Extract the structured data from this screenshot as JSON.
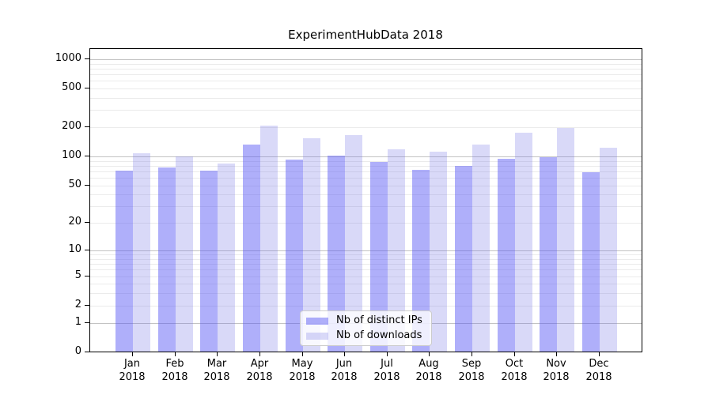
{
  "chart_data": {
    "type": "bar",
    "title": "ExperimentHubData 2018",
    "categories": [
      "Jan",
      "Feb",
      "Mar",
      "Apr",
      "May",
      "Jun",
      "Jul",
      "Aug",
      "Sep",
      "Oct",
      "Nov",
      "Dec"
    ],
    "xtick_second_line": "2018",
    "series": [
      {
        "name": "Nb of distinct IPs",
        "color": "#a9a9f5",
        "color_rgba": "rgba(85,85,245,0.47)",
        "values": [
          70,
          76,
          70,
          130,
          91,
          100,
          86,
          72,
          79,
          93,
          96,
          67
        ]
      },
      {
        "name": "Nb of downloads",
        "color": "#d9d9f8",
        "color_rgba": "rgba(120,120,230,0.28)",
        "values": [
          106,
          98,
          83,
          204,
          151,
          163,
          116,
          110,
          130,
          172,
          194,
          121
        ]
      }
    ],
    "yticks": {
      "values": [
        0,
        1,
        2,
        5,
        10,
        20,
        50,
        100,
        200,
        500,
        1000
      ],
      "labels": [
        "0",
        "1",
        "2",
        "5",
        "10",
        "20",
        "50",
        "100",
        "200",
        "500",
        "1000"
      ]
    },
    "y_scale": "symlog",
    "ylim": [
      0,
      1270
    ],
    "grid": "horizontal major+minor",
    "legend_position": "lower center inside plot",
    "grid_major_color": "#c3c3c3",
    "grid_minor_color": "#ebebeb"
  }
}
